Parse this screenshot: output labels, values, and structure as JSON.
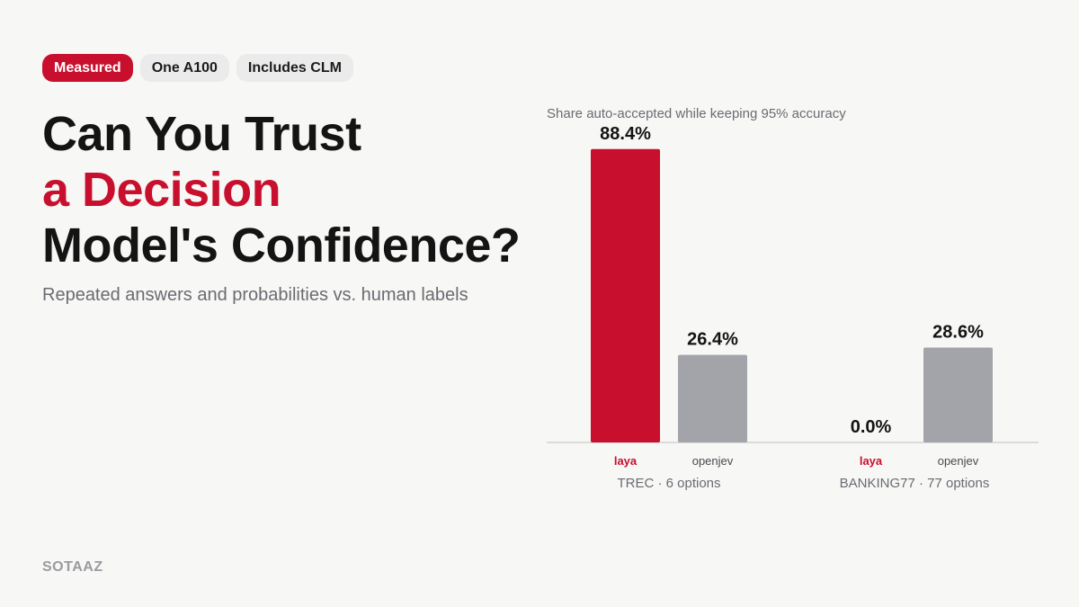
{
  "badges": [
    {
      "label": "Measured",
      "active": true
    },
    {
      "label": "One A100",
      "active": false
    },
    {
      "label": "Includes CLM",
      "active": false
    }
  ],
  "headline": {
    "line1": "Can You Trust",
    "line2": "a Decision",
    "line3": "Model's Confidence?"
  },
  "subtitle": "Repeated answers and probabilities vs. human labels",
  "brand": "SOTAAZ",
  "colors": {
    "accent": "#c8102e",
    "neutral_bar": "#a3a3aa",
    "text_dark": "#141414",
    "text_muted": "#6b6b72",
    "background": "#f7f7f5"
  },
  "chart_data": {
    "type": "bar",
    "title": "Share auto-accepted while keeping 95% accuracy",
    "categories": [
      "TREC · 6 options",
      "BANKING77 · 77 options"
    ],
    "series": [
      {
        "name": "laya",
        "values": [
          88.4,
          0.0
        ],
        "labels": [
          "88.4%",
          "0.0%"
        ],
        "color": "#c8102e"
      },
      {
        "name": "openjev",
        "values": [
          26.4,
          28.6
        ],
        "labels": [
          "26.4%",
          "28.6%"
        ],
        "color": "#a3a3aa"
      }
    ],
    "ylim": [
      0,
      100
    ],
    "grid": false,
    "legend": "none"
  }
}
